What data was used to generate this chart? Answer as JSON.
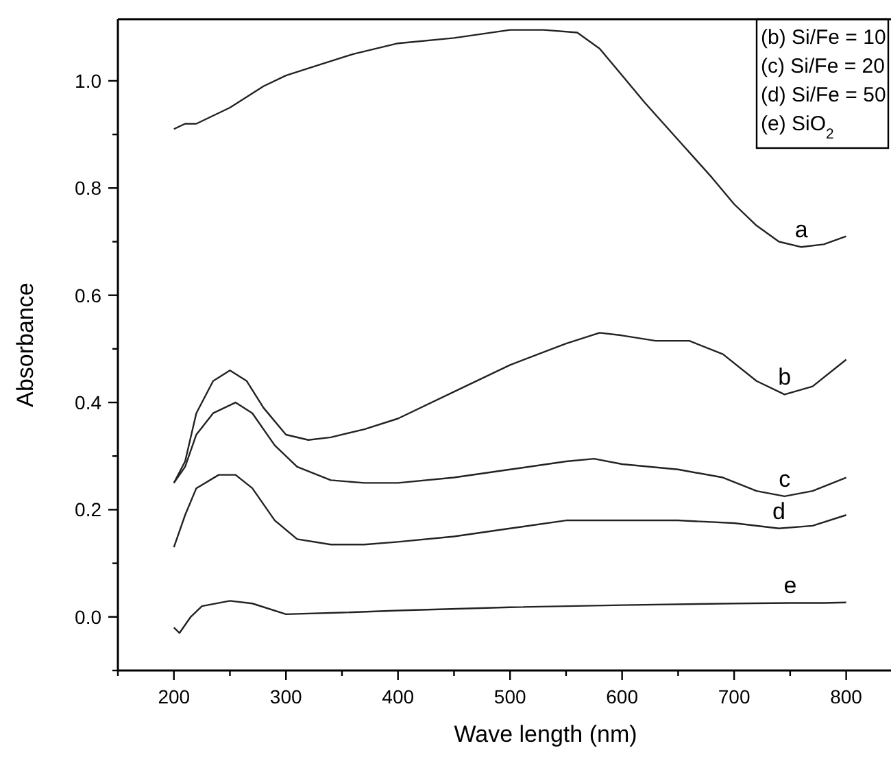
{
  "chart_data": {
    "type": "line",
    "xlabel": "Wave length (nm)",
    "ylabel": "Absorbance",
    "xlim": [
      150,
      840
    ],
    "ylim": [
      -0.1,
      1.115
    ],
    "xticks": [
      {
        "value": 150,
        "label": null
      },
      200,
      {
        "value": 250,
        "label": null
      },
      300,
      {
        "value": 350,
        "label": null
      },
      400,
      {
        "value": 450,
        "label": null
      },
      500,
      {
        "value": 550,
        "label": null
      },
      600,
      {
        "value": 650,
        "label": null
      },
      700,
      {
        "value": 750,
        "label": null
      },
      800
    ],
    "yticks": [
      {
        "value": -0.1,
        "label": null
      },
      {
        "value": 0,
        "label": "0.0"
      },
      {
        "value": 0.1,
        "label": null
      },
      0.2,
      {
        "value": 0.3,
        "label": null
      },
      0.4,
      {
        "value": 0.5,
        "label": null
      },
      0.6,
      {
        "value": 0.7,
        "label": null
      },
      0.8,
      {
        "value": 0.9,
        "label": null
      },
      {
        "value": 1,
        "label": "1.0"
      }
    ],
    "grid": false,
    "marker": "none",
    "line_style": "solid",
    "series": [
      {
        "name": "a",
        "color": "#222222",
        "x": [
          200,
          210,
          220,
          250,
          280,
          300,
          330,
          360,
          400,
          450,
          500,
          530,
          560,
          580,
          600,
          620,
          650,
          680,
          700,
          720,
          740,
          760,
          780,
          800
        ],
        "values": [
          0.91,
          0.92,
          0.92,
          0.95,
          0.99,
          1.01,
          1.03,
          1.05,
          1.07,
          1.08,
          1.095,
          1.095,
          1.09,
          1.06,
          1.01,
          0.96,
          0.89,
          0.82,
          0.77,
          0.73,
          0.7,
          0.69,
          0.695,
          0.71
        ]
      },
      {
        "name": "b",
        "color": "#222222",
        "x": [
          200,
          210,
          220,
          235,
          250,
          265,
          280,
          300,
          320,
          340,
          370,
          400,
          450,
          500,
          550,
          580,
          600,
          630,
          660,
          690,
          720,
          745,
          770,
          800
        ],
        "values": [
          0.25,
          0.29,
          0.38,
          0.44,
          0.46,
          0.44,
          0.39,
          0.34,
          0.33,
          0.335,
          0.35,
          0.37,
          0.42,
          0.47,
          0.51,
          0.53,
          0.525,
          0.515,
          0.515,
          0.49,
          0.44,
          0.415,
          0.43,
          0.48
        ]
      },
      {
        "name": "c",
        "color": "#222222",
        "x": [
          200,
          210,
          220,
          235,
          255,
          270,
          290,
          310,
          340,
          370,
          400,
          450,
          500,
          550,
          575,
          600,
          650,
          690,
          720,
          745,
          770,
          800
        ],
        "values": [
          0.25,
          0.28,
          0.34,
          0.38,
          0.4,
          0.38,
          0.32,
          0.28,
          0.255,
          0.25,
          0.25,
          0.26,
          0.275,
          0.29,
          0.295,
          0.285,
          0.275,
          0.26,
          0.235,
          0.225,
          0.235,
          0.26
        ]
      },
      {
        "name": "d",
        "color": "#222222",
        "x": [
          200,
          210,
          220,
          240,
          255,
          270,
          290,
          310,
          340,
          370,
          400,
          450,
          500,
          550,
          600,
          650,
          700,
          740,
          770,
          800
        ],
        "values": [
          0.13,
          0.19,
          0.24,
          0.265,
          0.265,
          0.24,
          0.18,
          0.145,
          0.135,
          0.135,
          0.14,
          0.15,
          0.165,
          0.18,
          0.18,
          0.18,
          0.175,
          0.165,
          0.17,
          0.19
        ]
      },
      {
        "name": "e",
        "color": "#222222",
        "x": [
          200,
          205,
          215,
          225,
          250,
          270,
          300,
          350,
          400,
          500,
          600,
          700,
          750,
          780,
          800
        ],
        "values": [
          -0.02,
          -0.03,
          0,
          0.02,
          0.03,
          0.025,
          0.005,
          0.008,
          0.012,
          0.018,
          0.022,
          0.025,
          0.026,
          0.026,
          0.027
        ]
      }
    ],
    "annotations": [
      "(b) Si/Fe = 10",
      "(c) Si/Fe = 20",
      "(d) Si/Fe = 50",
      "(e) SiO$_{2}$"
    ]
  }
}
